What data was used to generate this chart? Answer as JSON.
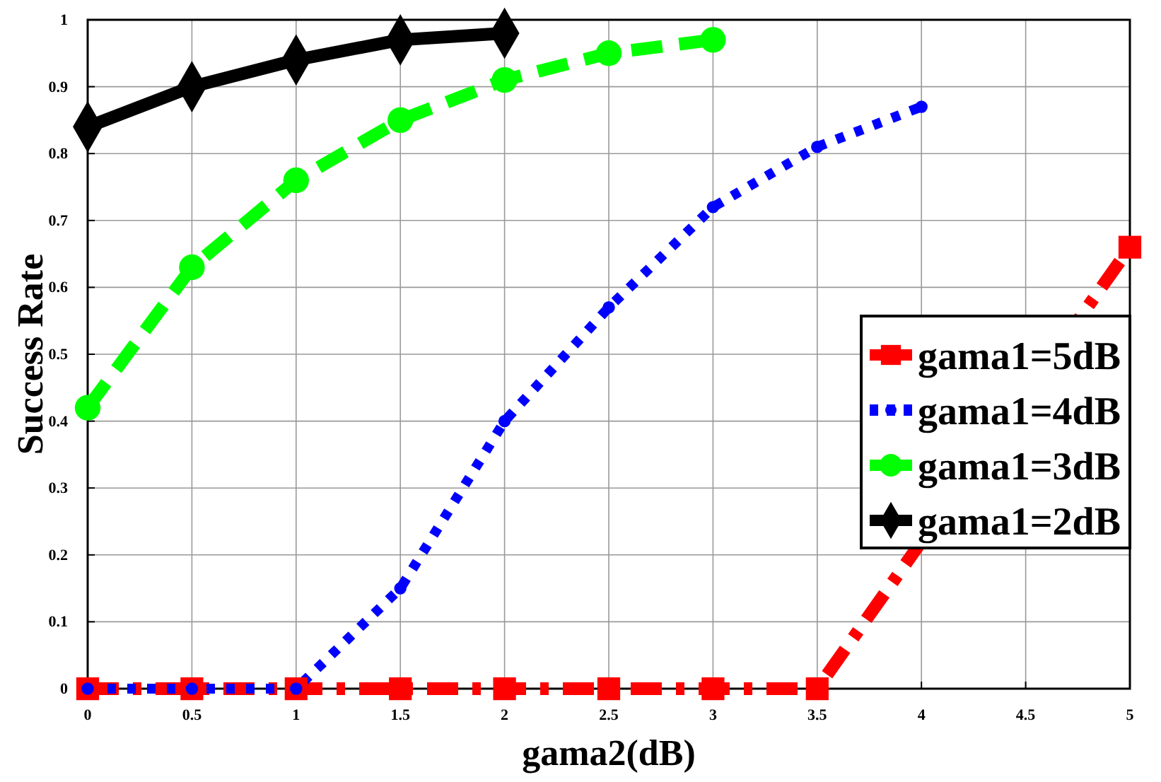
{
  "chart_data": {
    "type": "line",
    "xlabel": "gama2(dB)",
    "ylabel": "Success Rate",
    "xlim": [
      0,
      5
    ],
    "ylim": [
      0,
      1
    ],
    "xticks": [
      0,
      0.5,
      1,
      1.5,
      2,
      2.5,
      3,
      3.5,
      4,
      4.5,
      5
    ],
    "yticks": [
      0,
      0.1,
      0.2,
      0.3,
      0.4,
      0.5,
      0.6,
      0.7,
      0.8,
      0.9,
      1
    ],
    "grid": true,
    "legend": "right",
    "series": [
      {
        "name": "gama1=5dB",
        "color": "#ff0000",
        "line_style": "dashdot",
        "marker": "square",
        "x": [
          0,
          0.5,
          1,
          1.5,
          2,
          2.5,
          3,
          3.5,
          5
        ],
        "values": [
          0,
          0,
          0,
          0,
          0,
          0,
          0,
          0,
          0.66
        ]
      },
      {
        "name": "gama1=4dB",
        "color": "#0000ff",
        "line_style": "dotted",
        "marker": "circle",
        "x": [
          0,
          0.5,
          1,
          1.5,
          2,
          2.5,
          3,
          3.5,
          4
        ],
        "values": [
          0,
          0,
          0,
          0.15,
          0.4,
          0.57,
          0.72,
          0.81,
          0.87
        ]
      },
      {
        "name": "gama1=3dB",
        "color": "#00ff00",
        "line_style": "dashed",
        "marker": "circle",
        "x": [
          0,
          0.5,
          1,
          1.5,
          2,
          2.5,
          3
        ],
        "values": [
          0.42,
          0.63,
          0.76,
          0.85,
          0.91,
          0.95,
          0.97
        ]
      },
      {
        "name": "gama1=2dB",
        "color": "#000000",
        "line_style": "solid",
        "marker": "diamond",
        "x": [
          0,
          0.5,
          1,
          1.5,
          2
        ],
        "values": [
          0.84,
          0.9,
          0.94,
          0.97,
          0.98
        ]
      }
    ]
  }
}
